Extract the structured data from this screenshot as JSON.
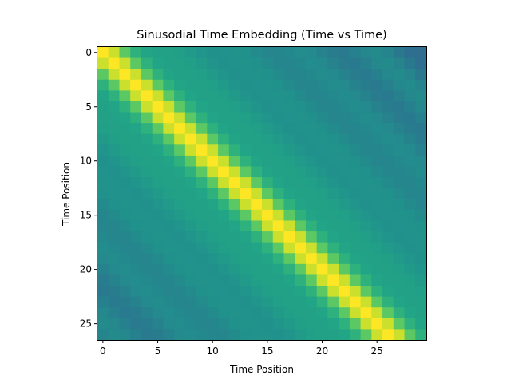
{
  "chart_data": {
    "type": "heatmap",
    "title": "Sinusodial Time Embedding (Time vs Time)",
    "xlabel": "Time Position",
    "ylabel": "Time Position",
    "n_rows": 27,
    "n_cols": 30,
    "x_ticks": [
      0,
      5,
      10,
      15,
      20,
      25
    ],
    "y_ticks": [
      0,
      5,
      10,
      15,
      20,
      25
    ],
    "xlim": [
      -0.5,
      29.5
    ],
    "ylim": [
      26.5,
      -0.5
    ],
    "value": "similarity(row, col) — highest on diagonal row = col, decaying with |row - col|",
    "colormap": "viridis",
    "colors": {
      "diagonal": "#fde725",
      "near": "#3cbb75",
      "far": "#238a8d"
    }
  }
}
